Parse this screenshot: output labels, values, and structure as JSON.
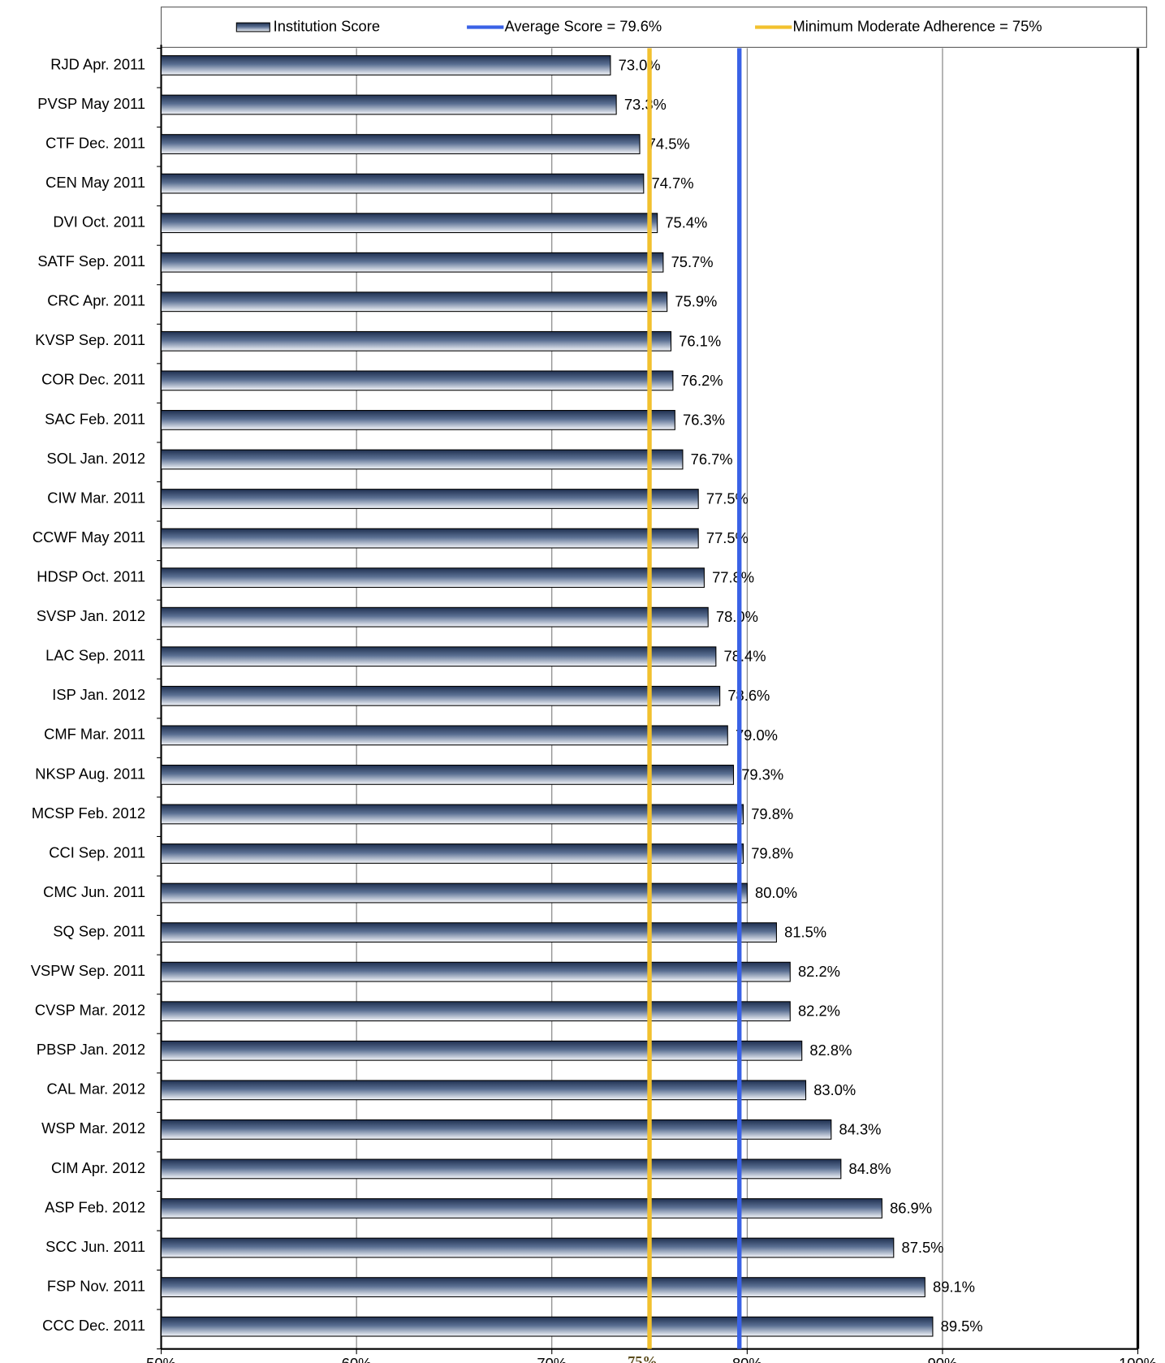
{
  "chart_data": {
    "type": "barh",
    "categories": [
      "RJD Apr. 2011",
      "PVSP May 2011",
      "CTF Dec. 2011",
      "CEN May 2011",
      "DVI Oct. 2011",
      "SATF Sep. 2011",
      "CRC Apr. 2011",
      "KVSP Sep. 2011",
      "COR Dec. 2011",
      "SAC Feb. 2011",
      "SOL Jan. 2012",
      "CIW Mar. 2011",
      "CCWF May 2011",
      "HDSP Oct. 2011",
      "SVSP Jan. 2012",
      "LAC Sep. 2011",
      "ISP Jan. 2012",
      "CMF Mar. 2011",
      "NKSP Aug. 2011",
      "MCSP Feb. 2012",
      "CCI Sep. 2011",
      "CMC Jun. 2011",
      "SQ Sep. 2011",
      "VSPW Sep. 2011",
      "CVSP Mar. 2012",
      "PBSP Jan. 2012",
      "CAL Mar. 2012",
      "WSP Mar. 2012",
      "CIM Apr. 2012",
      "ASP Feb. 2012",
      "SCC Jun. 2011",
      "FSP Nov. 2011",
      "CCC Dec. 2011"
    ],
    "series": [
      {
        "name": "Institution Score",
        "color": "#1f3050",
        "values": [
          73.0,
          73.3,
          74.5,
          74.7,
          75.4,
          75.7,
          75.9,
          76.1,
          76.2,
          76.3,
          76.7,
          77.5,
          77.5,
          77.8,
          78.0,
          78.4,
          78.6,
          79.0,
          79.3,
          79.8,
          79.8,
          80.0,
          81.5,
          82.2,
          82.2,
          82.8,
          83.0,
          84.3,
          84.8,
          86.9,
          87.5,
          89.1,
          89.5
        ],
        "value_labels": [
          "73.0%",
          "73.3%",
          "74.5%",
          "74.7%",
          "75.4%",
          "75.7%",
          "75.9%",
          "76.1%",
          "76.2%",
          "76.3%",
          "76.7%",
          "77.5%",
          "77.5%",
          "77.8%",
          "78.0%",
          "78.4%",
          "78.6%",
          "79.0%",
          "79.3%",
          "79.8%",
          "79.8%",
          "80.0%",
          "81.5%",
          "82.2%",
          "82.2%",
          "82.8%",
          "83.0%",
          "84.3%",
          "84.8%",
          "86.9%",
          "87.5%",
          "89.1%",
          "89.5%"
        ]
      }
    ],
    "reference_lines": [
      {
        "name": "Average Score = 79.6%",
        "value": 79.6,
        "color": "#3a62e6"
      },
      {
        "name": "Minimum Moderate Adherence = 75%",
        "value": 75,
        "color": "#f2c12e",
        "label": "75%"
      }
    ],
    "xlim": [
      50,
      100
    ],
    "xticks": [
      {
        "value": 50,
        "label": "50%"
      },
      {
        "value": 60,
        "label": "60%"
      },
      {
        "value": 70,
        "label": "70%"
      },
      {
        "value": 80,
        "label": "80%"
      },
      {
        "value": 90,
        "label": "90%"
      },
      {
        "value": 100,
        "label": "100%"
      }
    ],
    "grid": true,
    "legend": "top"
  }
}
